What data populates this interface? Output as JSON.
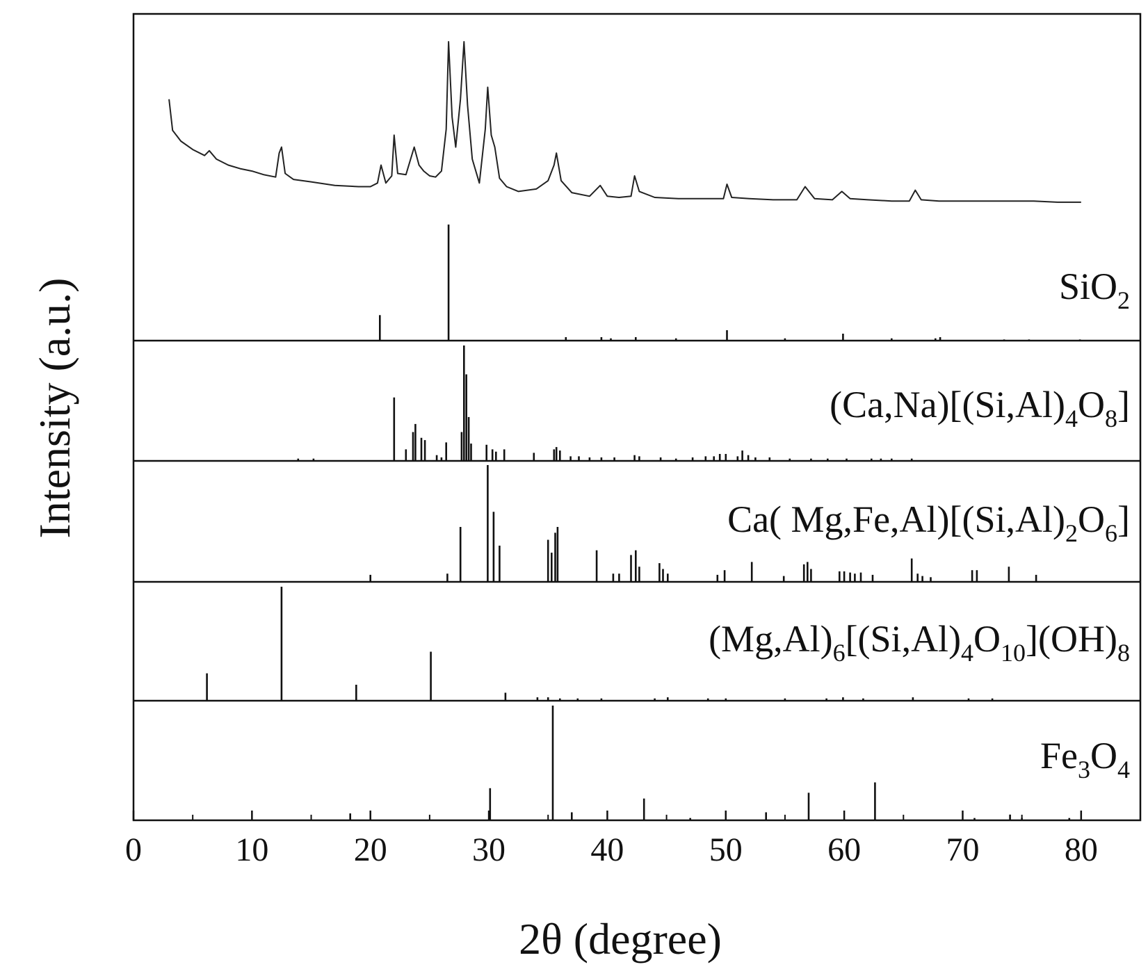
{
  "chart_data": {
    "type": "line",
    "xlabel": "2θ (degree)",
    "ylabel": "Intensity (a.u.)",
    "xlim": [
      0,
      85
    ],
    "x_ticks": [
      "0",
      "10",
      "20",
      "30",
      "40",
      "50",
      "60",
      "70",
      "80"
    ],
    "measured_pattern": {
      "x": [
        3.0,
        3.3,
        4,
        5,
        6,
        6.4,
        7,
        8,
        9,
        10,
        11,
        12,
        12.3,
        12.5,
        12.8,
        13.5,
        15,
        17,
        19,
        20,
        20.6,
        20.9,
        21.3,
        21.8,
        22.0,
        22.3,
        23,
        23.7,
        24.1,
        24.5,
        25,
        25.5,
        26.0,
        26.4,
        26.6,
        26.9,
        27.2,
        27.6,
        27.9,
        28.2,
        28.6,
        29.2,
        29.7,
        29.9,
        30.2,
        30.5,
        30.9,
        31.5,
        32.5,
        34,
        35.0,
        35.5,
        35.7,
        36.1,
        37,
        38.5,
        39.4,
        40,
        41,
        42.0,
        42.3,
        42.7,
        44,
        46,
        48,
        49.8,
        50.1,
        50.5,
        52,
        54,
        56,
        56.7,
        57.5,
        59,
        59.8,
        60.5,
        62,
        64,
        65.5,
        66.0,
        66.5,
        68,
        70,
        72,
        74,
        76,
        78,
        80
      ],
      "y": [
        100,
        74,
        65,
        58,
        53,
        57,
        50,
        45,
        42,
        40,
        37,
        35,
        55,
        60,
        38,
        33,
        31,
        28,
        27,
        27,
        30,
        45,
        30,
        36,
        70,
        38,
        37,
        60,
        45,
        40,
        36,
        35,
        40,
        75,
        148,
        85,
        60,
        100,
        148,
        95,
        50,
        30,
        75,
        110,
        70,
        60,
        34,
        27,
        23,
        25,
        32,
        45,
        55,
        32,
        22,
        19,
        28,
        19,
        18,
        19,
        36,
        23,
        18,
        17,
        17,
        17,
        29,
        18,
        17,
        16,
        16,
        27,
        17,
        16,
        23,
        17,
        16,
        15,
        15,
        24,
        16,
        15,
        15,
        15,
        15,
        15,
        14,
        14
      ]
    },
    "references": [
      {
        "name_parts": [
          [
            "SiO",
            "n"
          ],
          [
            "2",
            "sub"
          ]
        ],
        "peaks": [
          [
            20.8,
            22
          ],
          [
            26.6,
            100
          ],
          [
            36.5,
            3
          ],
          [
            39.5,
            3
          ],
          [
            40.3,
            2
          ],
          [
            42.4,
            3
          ],
          [
            45.8,
            2
          ],
          [
            50.1,
            9
          ],
          [
            55.0,
            2
          ],
          [
            59.9,
            6
          ],
          [
            64.0,
            2
          ],
          [
            67.7,
            2
          ],
          [
            68.1,
            3
          ],
          [
            73.5,
            1
          ],
          [
            75.6,
            1
          ],
          [
            79.9,
            1
          ]
        ]
      },
      {
        "name_parts": [
          [
            "(Ca,Na)[(Si,Al)",
            "n"
          ],
          [
            "4",
            "sub"
          ],
          [
            "O",
            "n"
          ],
          [
            "8",
            "sub"
          ],
          [
            "]",
            "n"
          ]
        ],
        "peaks": [
          [
            13.9,
            2
          ],
          [
            15.2,
            2
          ],
          [
            22.0,
            55
          ],
          [
            23.0,
            10
          ],
          [
            23.6,
            25
          ],
          [
            23.8,
            32
          ],
          [
            24.3,
            20
          ],
          [
            24.6,
            18
          ],
          [
            25.6,
            5
          ],
          [
            26.0,
            3
          ],
          [
            26.4,
            16
          ],
          [
            27.7,
            25
          ],
          [
            27.9,
            100
          ],
          [
            28.1,
            75
          ],
          [
            28.3,
            38
          ],
          [
            28.5,
            15
          ],
          [
            29.8,
            14
          ],
          [
            30.3,
            10
          ],
          [
            30.6,
            8
          ],
          [
            31.3,
            10
          ],
          [
            33.8,
            7
          ],
          [
            35.5,
            10
          ],
          [
            35.7,
            12
          ],
          [
            36.0,
            9
          ],
          [
            36.9,
            4
          ],
          [
            37.6,
            4
          ],
          [
            38.5,
            3
          ],
          [
            39.5,
            3
          ],
          [
            40.6,
            3
          ],
          [
            42.3,
            5
          ],
          [
            42.7,
            4
          ],
          [
            44.5,
            3
          ],
          [
            45.8,
            2
          ],
          [
            47.2,
            3
          ],
          [
            48.3,
            4
          ],
          [
            49.0,
            4
          ],
          [
            49.5,
            6
          ],
          [
            50.0,
            6
          ],
          [
            51.0,
            4
          ],
          [
            51.4,
            9
          ],
          [
            51.9,
            5
          ],
          [
            52.5,
            3
          ],
          [
            53.7,
            3
          ],
          [
            55.4,
            2
          ],
          [
            57.2,
            2
          ],
          [
            58.6,
            2
          ],
          [
            60.2,
            2
          ],
          [
            62.3,
            2
          ],
          [
            63.1,
            2
          ],
          [
            64.0,
            2
          ],
          [
            65.7,
            2
          ]
        ]
      },
      {
        "name_parts": [
          [
            "Ca( Mg,Fe,Al)[(Si,Al)",
            "n"
          ],
          [
            "2",
            "sub"
          ],
          [
            "O",
            "n"
          ],
          [
            "6",
            "sub"
          ],
          [
            "]",
            "n"
          ]
        ],
        "peaks": [
          [
            20.0,
            6
          ],
          [
            26.5,
            7
          ],
          [
            27.6,
            47
          ],
          [
            29.9,
            100
          ],
          [
            30.4,
            60
          ],
          [
            30.9,
            31
          ],
          [
            35.0,
            36
          ],
          [
            35.3,
            25
          ],
          [
            35.6,
            42
          ],
          [
            35.8,
            47
          ],
          [
            39.1,
            27
          ],
          [
            40.5,
            7
          ],
          [
            41.0,
            7
          ],
          [
            42.0,
            23
          ],
          [
            42.4,
            27
          ],
          [
            42.7,
            13
          ],
          [
            44.4,
            16
          ],
          [
            44.7,
            11
          ],
          [
            45.1,
            7
          ],
          [
            49.3,
            6
          ],
          [
            49.9,
            10
          ],
          [
            52.2,
            17
          ],
          [
            54.9,
            5
          ],
          [
            56.6,
            15
          ],
          [
            56.9,
            17
          ],
          [
            57.2,
            11
          ],
          [
            59.6,
            9
          ],
          [
            60.0,
            9
          ],
          [
            60.5,
            8
          ],
          [
            60.9,
            7
          ],
          [
            61.4,
            8
          ],
          [
            62.4,
            6
          ],
          [
            65.7,
            20
          ],
          [
            66.2,
            7
          ],
          [
            66.6,
            5
          ],
          [
            67.3,
            4
          ],
          [
            70.8,
            10
          ],
          [
            71.2,
            10
          ],
          [
            73.9,
            13
          ],
          [
            76.2,
            6
          ]
        ]
      },
      {
        "name_parts": [
          [
            "(Mg,Al)",
            "n"
          ],
          [
            "6",
            "sub"
          ],
          [
            "[(Si,Al)",
            "n"
          ],
          [
            "4",
            "sub"
          ],
          [
            "O",
            "n"
          ],
          [
            "10",
            "sub"
          ],
          [
            "](OH)",
            "n"
          ],
          [
            "8",
            "sub"
          ]
        ],
        "peaks": [
          [
            6.2,
            24
          ],
          [
            12.5,
            100
          ],
          [
            18.8,
            14
          ],
          [
            25.1,
            43
          ],
          [
            31.4,
            7
          ],
          [
            34.1,
            3
          ],
          [
            35.0,
            3
          ],
          [
            36.0,
            2
          ],
          [
            37.5,
            2
          ],
          [
            39.5,
            2
          ],
          [
            44.0,
            2
          ],
          [
            45.1,
            3
          ],
          [
            48.5,
            2
          ],
          [
            50.0,
            2
          ],
          [
            55.0,
            2
          ],
          [
            58.5,
            2
          ],
          [
            59.9,
            3
          ],
          [
            61.6,
            2
          ],
          [
            65.8,
            3
          ],
          [
            70.5,
            2
          ],
          [
            72.5,
            2
          ]
        ]
      },
      {
        "name_parts": [
          [
            "Fe",
            "n"
          ],
          [
            "3",
            "sub"
          ],
          [
            "O",
            "n"
          ],
          [
            "4",
            "sub"
          ]
        ],
        "peaks": [
          [
            18.3,
            6
          ],
          [
            30.1,
            28
          ],
          [
            35.4,
            100
          ],
          [
            37.0,
            7
          ],
          [
            43.1,
            19
          ],
          [
            47.0,
            2
          ],
          [
            53.4,
            7
          ],
          [
            57.0,
            24
          ],
          [
            62.6,
            33
          ],
          [
            71.0,
            2
          ],
          [
            74.0,
            5
          ],
          [
            75.0,
            2
          ],
          [
            79.0,
            2
          ]
        ]
      }
    ]
  }
}
